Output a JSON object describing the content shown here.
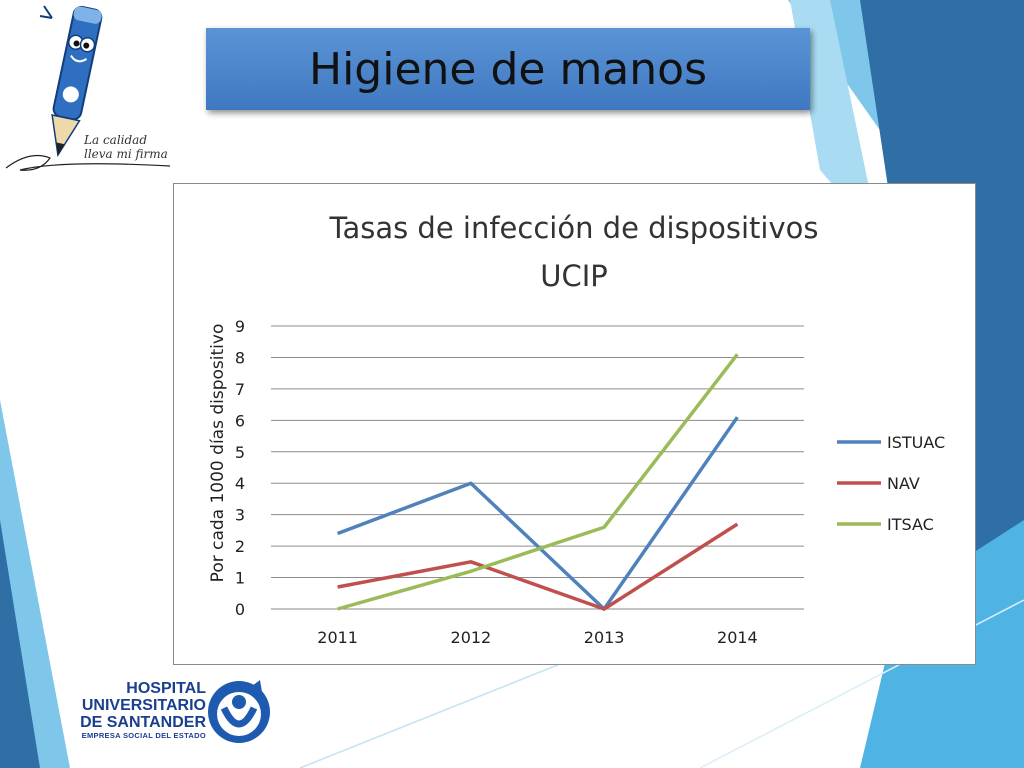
{
  "slide": {
    "title": "Higiene de manos",
    "tagline_line1": "La calidad",
    "tagline_line2": "lleva mi firma"
  },
  "hospital": {
    "line1": "HOSPITAL",
    "line2": "UNIVERSITARIO",
    "line3": "DE SANTANDER",
    "line4": "EMPRESA SOCIAL DEL ESTADO"
  },
  "colors": {
    "title_bar": "#4a86cc",
    "deco_blue_dark": "#2f6fa6",
    "deco_blue_light": "#7fc7ea",
    "istuac": "#4f81bd",
    "nav": "#c0504d",
    "itsac": "#9bbb59"
  },
  "icons": [
    "pencil-mascot-icon",
    "hospital-logo-icon"
  ],
  "chart_data": {
    "type": "line",
    "title_line1": "Tasas de infección de dispositivos",
    "title_line2": "UCIP",
    "ylabel": "Por cada 1000 días dispositivo",
    "xlabel": "",
    "categories": [
      "2011",
      "2012",
      "2013",
      "2014"
    ],
    "ylim": [
      0,
      9
    ],
    "yticks": [
      "0",
      "1",
      "2",
      "3",
      "4",
      "5",
      "6",
      "7",
      "8",
      "9"
    ],
    "grid": true,
    "legend_position": "right",
    "series": [
      {
        "name": "ISTUAC",
        "color": "#4f81bd",
        "values": [
          2.4,
          4.0,
          0,
          6.1
        ]
      },
      {
        "name": "NAV",
        "color": "#c0504d",
        "values": [
          0.7,
          1.5,
          0,
          2.7
        ]
      },
      {
        "name": "ITSAC",
        "color": "#9bbb59",
        "values": [
          0,
          1.2,
          2.6,
          8.1
        ]
      }
    ]
  }
}
